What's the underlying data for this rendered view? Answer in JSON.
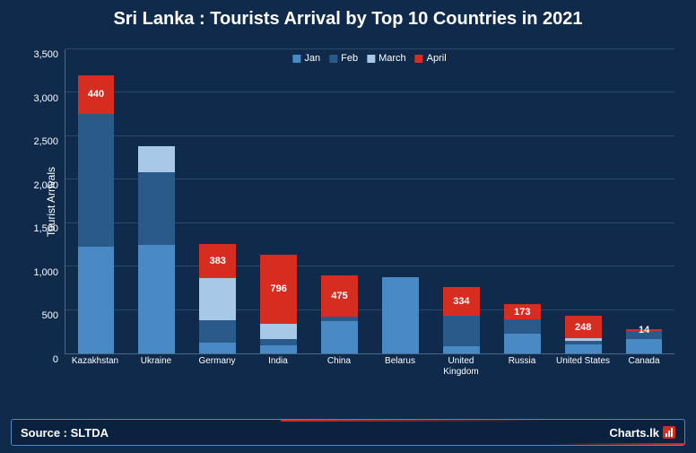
{
  "title": "Sri Lanka : Tourists Arrival by Top 10 Countries in 2021",
  "ylabel": "Tourist Arrivals",
  "source": "Source : SLTDA",
  "logo_text": "Charts.lk",
  "background_color": "#0f2a4a",
  "grid_color": "#2a4a6a",
  "axis_color": "#4a6a8a",
  "text_color": "#ffffff",
  "ylim": [
    0,
    3500
  ],
  "ytick_step": 500,
  "yticks": [
    "0",
    "500",
    "1,000",
    "1,500",
    "2,000",
    "2,500",
    "3,000",
    "3,500"
  ],
  "series": [
    {
      "name": "Jan",
      "color": "#4a8ac4"
    },
    {
      "name": "Feb",
      "color": "#2a5a8a"
    },
    {
      "name": "March",
      "color": "#a8c8e8"
    },
    {
      "name": "April",
      "color": "#d62d20"
    }
  ],
  "categories": [
    "Kazakhstan",
    "Ukraine",
    "Germany",
    "India",
    "China",
    "Belarus",
    "United Kingdom",
    "Russia",
    "United States",
    "Canada"
  ],
  "data": [
    {
      "country": "Kazakhstan",
      "values": [
        1230,
        1520,
        0,
        440
      ],
      "label": "440"
    },
    {
      "country": "Ukraine",
      "values": [
        1250,
        830,
        300,
        0
      ],
      "label": null
    },
    {
      "country": "Germany",
      "values": [
        120,
        260,
        490,
        383
      ],
      "label": "383"
    },
    {
      "country": "India",
      "values": [
        90,
        70,
        180,
        796
      ],
      "label": "796"
    },
    {
      "country": "China",
      "values": [
        370,
        50,
        0,
        475
      ],
      "label": "475"
    },
    {
      "country": "Belarus",
      "values": [
        880,
        0,
        0,
        0
      ],
      "label": null
    },
    {
      "country": "United Kingdom",
      "values": [
        80,
        350,
        0,
        334
      ],
      "label": "334"
    },
    {
      "country": "Russia",
      "values": [
        230,
        160,
        0,
        173
      ],
      "label": "173"
    },
    {
      "country": "United States",
      "values": [
        100,
        40,
        40,
        248
      ],
      "label": "248"
    },
    {
      "country": "Canada",
      "values": [
        170,
        90,
        0,
        14
      ],
      "label": "14"
    }
  ]
}
